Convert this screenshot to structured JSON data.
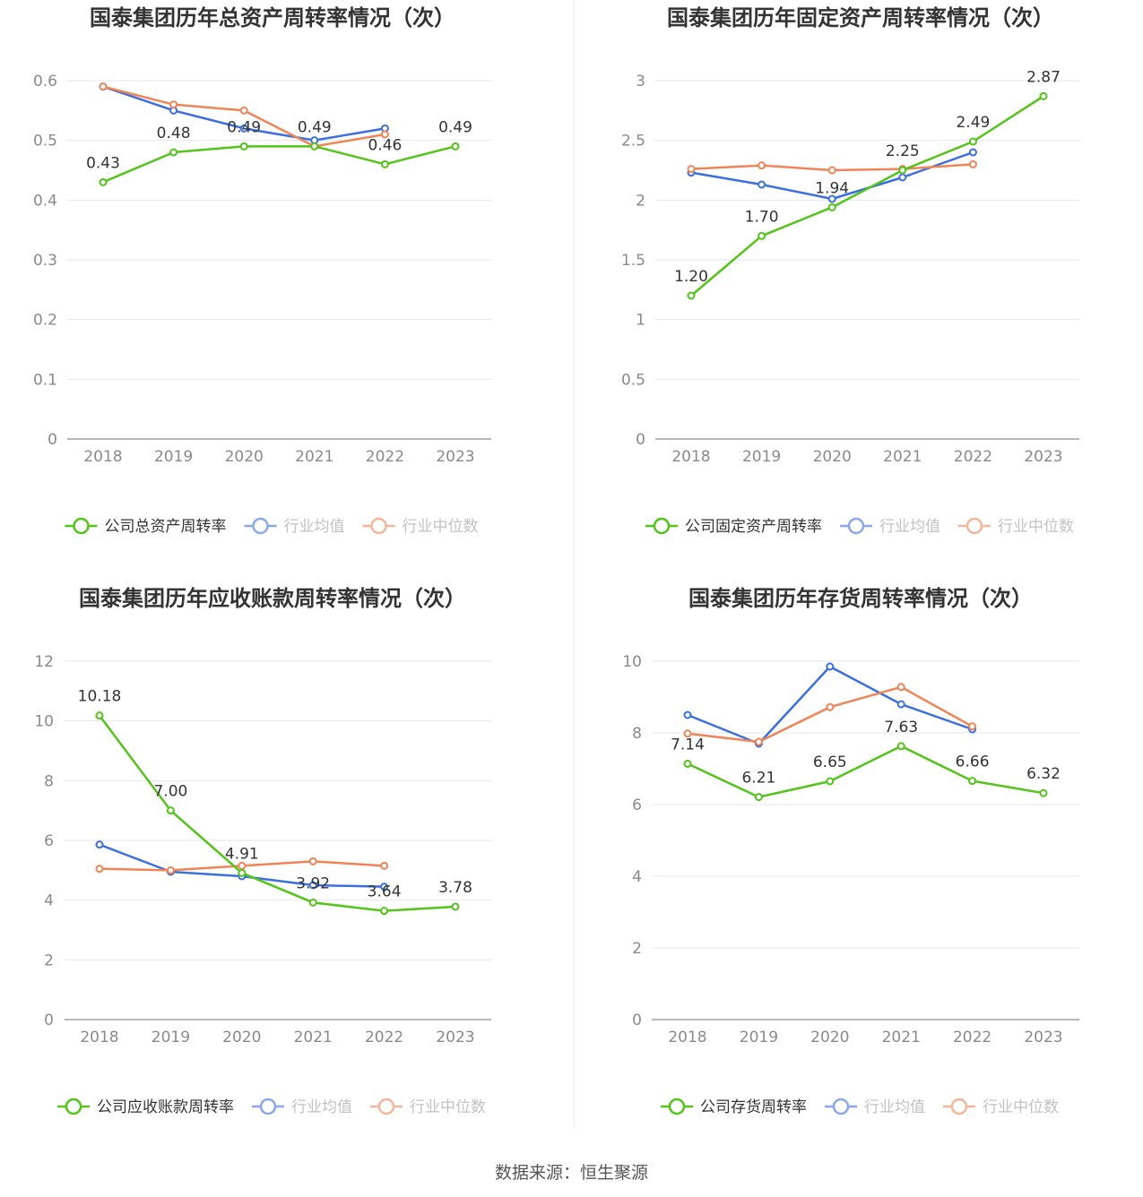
{
  "colors": {
    "company": "#52c41a",
    "average": "#3b6fe0",
    "median": "#f08456"
  },
  "chart_data": [
    {
      "type": "line",
      "title": "国泰集团历年总资产周转率情况（次）",
      "categories": [
        "2018",
        "2019",
        "2020",
        "2021",
        "2022",
        "2023"
      ],
      "ylim": [
        0,
        0.6
      ],
      "yticks": [
        0,
        0.1,
        0.2,
        0.3,
        0.4,
        0.5,
        0.6
      ],
      "ytick_labels": [
        "0",
        "0.1",
        "0.2",
        "0.3",
        "0.4",
        "0.5",
        "0.6"
      ],
      "series": [
        {
          "name": "公司总资产周转率",
          "role": "company",
          "values": [
            0.43,
            0.48,
            0.49,
            0.49,
            0.46,
            0.49
          ],
          "labels": [
            "0.43",
            "0.48",
            "0.49",
            "0.49",
            "0.46",
            "0.49"
          ]
        },
        {
          "name": "行业均值",
          "role": "average",
          "values": [
            0.59,
            0.55,
            0.52,
            0.5,
            0.52,
            null
          ]
        },
        {
          "name": "行业中位数",
          "role": "median",
          "values": [
            0.59,
            0.56,
            0.55,
            0.49,
            0.51,
            null
          ]
        }
      ]
    },
    {
      "type": "line",
      "title": "国泰集团历年固定资产周转率情况（次）",
      "categories": [
        "2018",
        "2019",
        "2020",
        "2021",
        "2022",
        "2023"
      ],
      "ylim": [
        0,
        3
      ],
      "yticks": [
        0,
        0.5,
        1,
        1.5,
        2,
        2.5,
        3
      ],
      "ytick_labels": [
        "0",
        "0.5",
        "1",
        "1.5",
        "2",
        "2.5",
        "3"
      ],
      "series": [
        {
          "name": "公司固定资产周转率",
          "role": "company",
          "values": [
            1.2,
            1.7,
            1.94,
            2.25,
            2.49,
            2.87
          ],
          "labels": [
            "1.20",
            "1.70",
            "1.94",
            "2.25",
            "2.49",
            "2.87"
          ]
        },
        {
          "name": "行业均值",
          "role": "average",
          "values": [
            2.23,
            2.13,
            2.01,
            2.19,
            2.4,
            null
          ]
        },
        {
          "name": "行业中位数",
          "role": "median",
          "values": [
            2.26,
            2.29,
            2.25,
            2.26,
            2.3,
            null
          ]
        }
      ]
    },
    {
      "type": "line",
      "title": "国泰集团历年应收账款周转率情况（次）",
      "categories": [
        "2018",
        "2019",
        "2020",
        "2021",
        "2022",
        "2023"
      ],
      "ylim": [
        0,
        12
      ],
      "yticks": [
        0,
        2,
        4,
        6,
        8,
        10,
        12
      ],
      "ytick_labels": [
        "0",
        "2",
        "4",
        "6",
        "8",
        "10",
        "12"
      ],
      "series": [
        {
          "name": "公司应收账款周转率",
          "role": "company",
          "values": [
            10.18,
            7.0,
            4.91,
            3.92,
            3.64,
            3.78
          ],
          "labels": [
            "10.18",
            "7.00",
            "4.91",
            "3.92",
            "3.64",
            "3.78"
          ]
        },
        {
          "name": "行业均值",
          "role": "average",
          "values": [
            5.86,
            4.95,
            4.8,
            4.5,
            4.45,
            null
          ]
        },
        {
          "name": "行业中位数",
          "role": "median",
          "values": [
            5.05,
            5.0,
            5.15,
            5.3,
            5.15,
            null
          ]
        }
      ]
    },
    {
      "type": "line",
      "title": "国泰集团历年存货周转率情况（次）",
      "categories": [
        "2018",
        "2019",
        "2020",
        "2021",
        "2022",
        "2023"
      ],
      "ylim": [
        0,
        10
      ],
      "yticks": [
        0,
        2,
        4,
        6,
        8,
        10
      ],
      "ytick_labels": [
        "0",
        "2",
        "4",
        "6",
        "8",
        "10"
      ],
      "series": [
        {
          "name": "公司存货周转率",
          "role": "company",
          "values": [
            7.14,
            6.21,
            6.65,
            7.63,
            6.66,
            6.32
          ],
          "labels": [
            "7.14",
            "6.21",
            "6.65",
            "7.63",
            "6.66",
            "6.32"
          ]
        },
        {
          "name": "行业均值",
          "role": "average",
          "values": [
            8.5,
            7.7,
            9.85,
            8.8,
            8.1,
            null
          ]
        },
        {
          "name": "行业中位数",
          "role": "median",
          "values": [
            7.98,
            7.75,
            8.72,
            9.28,
            8.18,
            null
          ]
        }
      ]
    }
  ],
  "footer": {
    "source": "数据来源：恒生聚源"
  }
}
